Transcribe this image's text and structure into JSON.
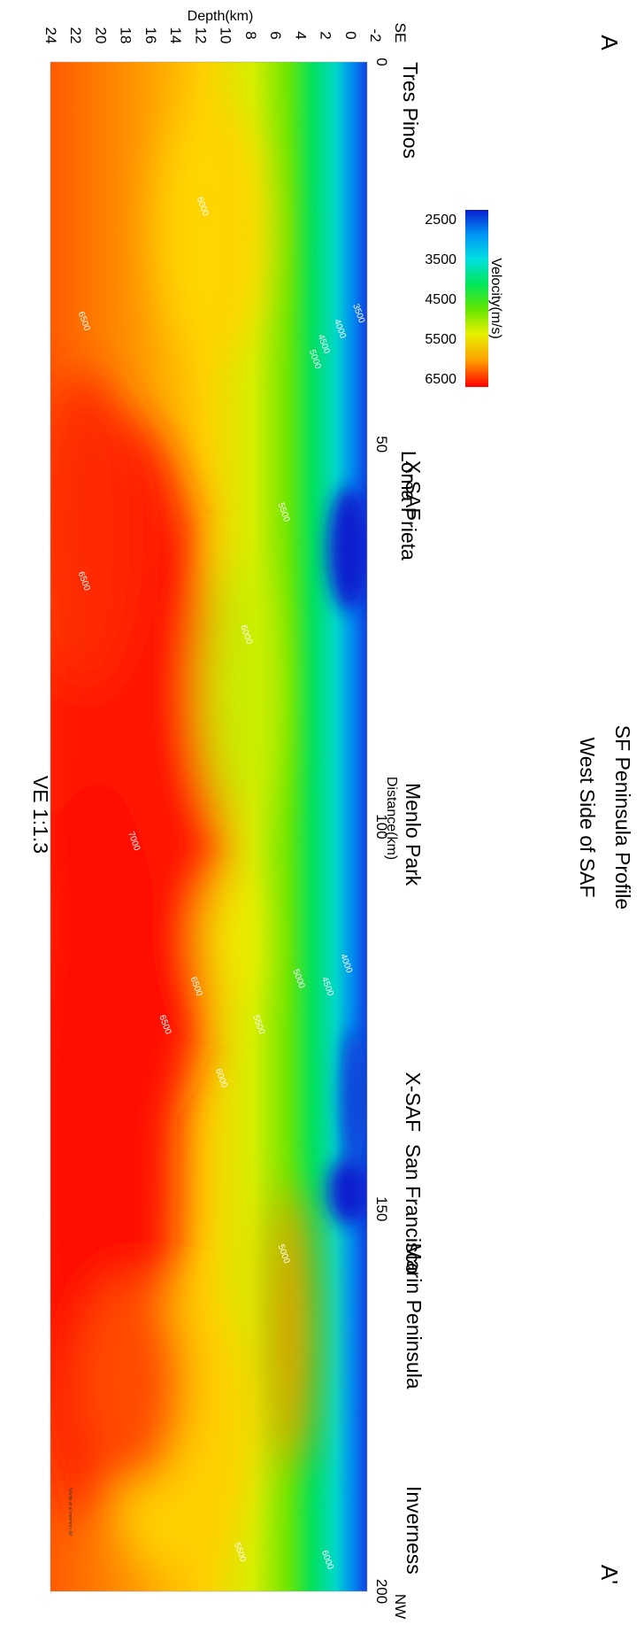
{
  "chart_data": {
    "type": "heatmap",
    "title": "SF Peninsula Profile",
    "subtitle": "West Side of SAF",
    "profile_start": "A",
    "profile_end": "A'",
    "orientation_start": "SE",
    "orientation_end": "NW",
    "vertical_exaggeration": "VE 1:1.3",
    "x_axis": {
      "label": "Distance(km)",
      "range": [
        0,
        200
      ],
      "ticks": [
        "0",
        "50",
        "100",
        "150",
        "200"
      ]
    },
    "depth_axis": {
      "label": "Depth(km)",
      "range": [
        -2,
        24
      ],
      "ticks": [
        "-2",
        "0",
        "2",
        "4",
        "6",
        "8",
        "10",
        "12",
        "14",
        "16",
        "18",
        "20",
        "22",
        "24"
      ]
    },
    "colorbar": {
      "label": "Velocity(m/s)",
      "range": [
        2500,
        6500
      ],
      "ticks": [
        "2500",
        "3500",
        "4500",
        "5500",
        "6500"
      ],
      "colors": [
        "#0a1ccf",
        "#0096f5",
        "#00e0e0",
        "#00e65a",
        "#64e600",
        "#e6f000",
        "#ffa000",
        "#ff0000"
      ]
    },
    "locations": [
      {
        "name": "Tres Pinos",
        "distance": 0
      },
      {
        "name": "X-SAF",
        "distance": 56
      },
      {
        "name": "Loma Prieta",
        "distance": 58
      },
      {
        "name": "Menlo Park",
        "distance": 101
      },
      {
        "name": "X-SAF",
        "distance": 136
      },
      {
        "name": "San Francisco",
        "distance": 150
      },
      {
        "name": "Marin Peninsula",
        "distance": 164
      },
      {
        "name": "Inverness",
        "distance": 192
      }
    ],
    "contour_labels": [
      {
        "value": "6000",
        "distance": 19,
        "depth": 12
      },
      {
        "value": "6500",
        "distance": 34,
        "depth": 21.5
      },
      {
        "value": "3500",
        "distance": 33,
        "depth": -0.5
      },
      {
        "value": "4000",
        "distance": 35,
        "depth": 1
      },
      {
        "value": "4500",
        "distance": 37,
        "depth": 2.3
      },
      {
        "value": "5000",
        "distance": 39,
        "depth": 3
      },
      {
        "value": "5500",
        "distance": 59,
        "depth": 5.5
      },
      {
        "value": "6500",
        "distance": 68,
        "depth": 21.5
      },
      {
        "value": "6000",
        "distance": 75,
        "depth": 8.5
      },
      {
        "value": "7000",
        "distance": 102,
        "depth": 17.5
      },
      {
        "value": "4000",
        "distance": 118,
        "depth": 0.5
      },
      {
        "value": "4500",
        "distance": 121,
        "depth": 2
      },
      {
        "value": "5000",
        "distance": 120,
        "depth": 4.3
      },
      {
        "value": "6500",
        "distance": 121,
        "depth": 12.5
      },
      {
        "value": "5500",
        "distance": 126,
        "depth": 7.5
      },
      {
        "value": "6500",
        "distance": 126,
        "depth": 15
      },
      {
        "value": "6000",
        "distance": 133,
        "depth": 10.5
      },
      {
        "value": "5000",
        "distance": 156,
        "depth": 5.5
      },
      {
        "value": "6000",
        "distance": 196,
        "depth": 2
      },
      {
        "value": "5500",
        "distance": 195,
        "depth": 9
      }
    ],
    "footnote": "Seville et al inversion 02"
  }
}
